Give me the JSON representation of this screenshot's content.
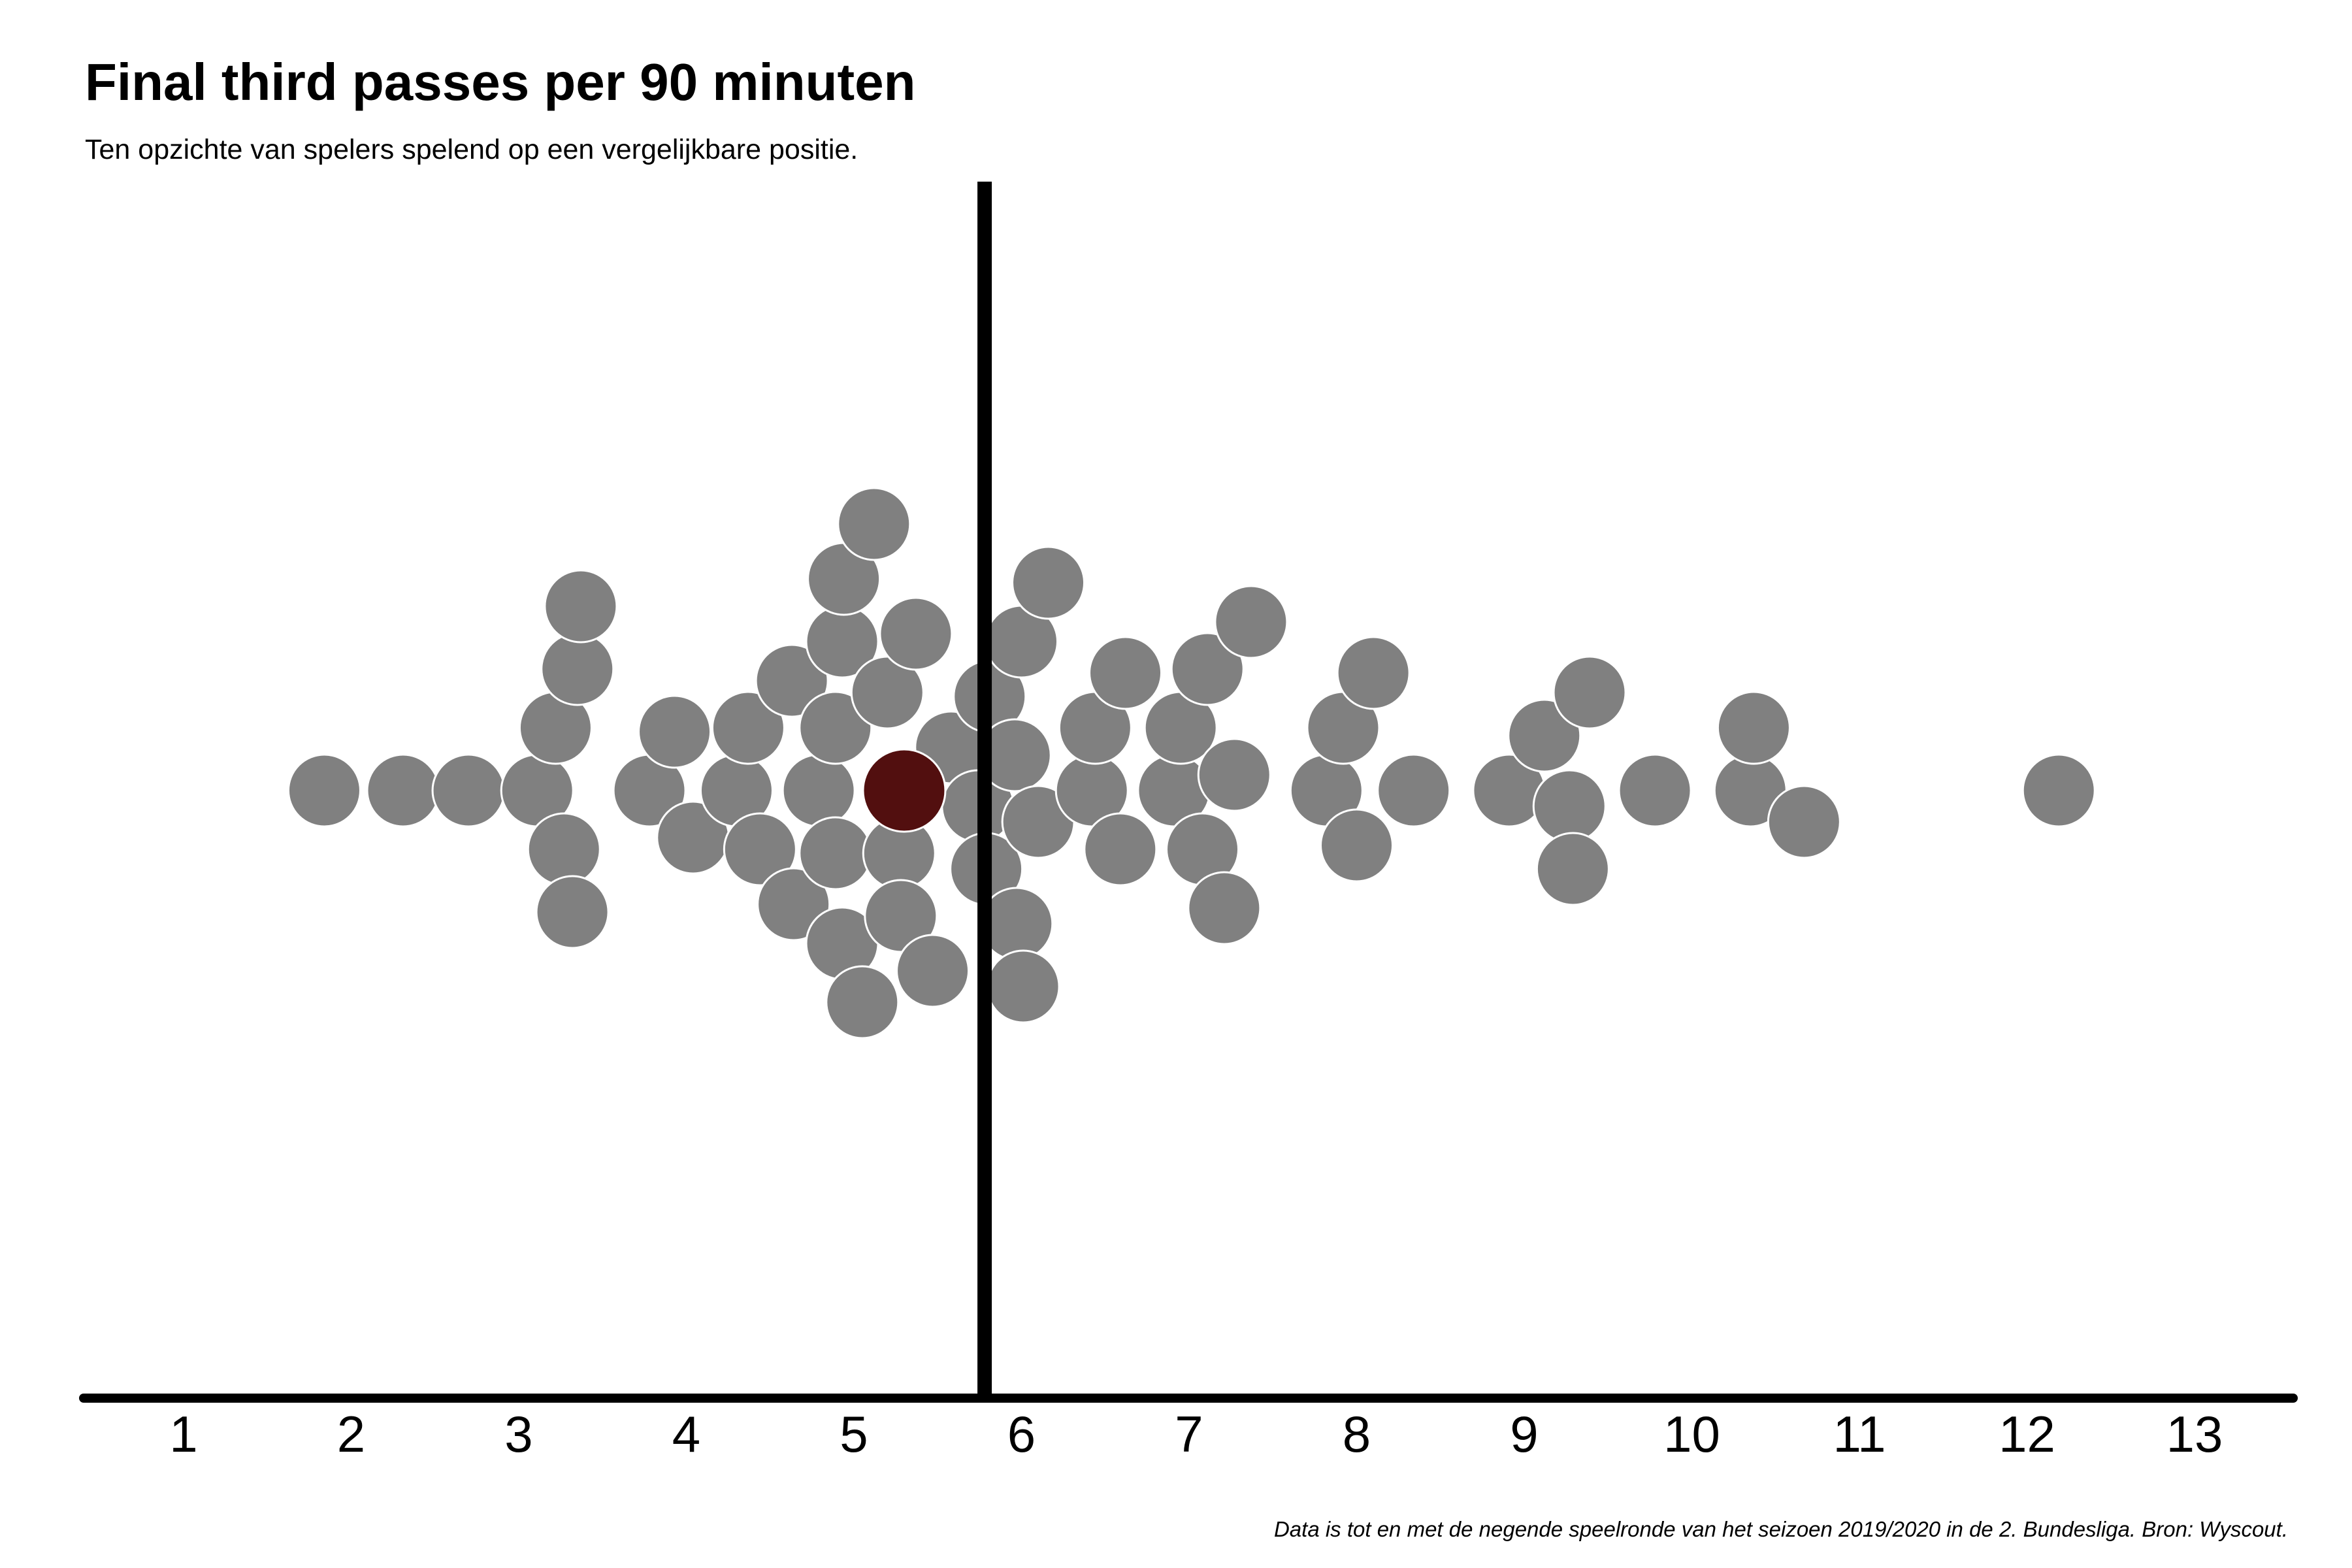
{
  "title": "Final third passes per 90 minuten",
  "subtitle": "Ten opzichte van spelers spelend op een vergelijkbare positie.",
  "caption": "Data is tot en met de negende speelronde van het seizoen 2019/2020 in de 2. Bundesliga. Bron: Wyscout.",
  "colors": {
    "point": "#808080",
    "highlight": "#520f0f",
    "line": "#000000",
    "point_stroke": "#ffffff"
  },
  "chart_data": {
    "type": "scatter",
    "subtype": "beeswarm",
    "title": "Final third passes per 90 minuten",
    "xlabel": "",
    "ylabel": "",
    "xlim": [
      0,
      13.6
    ],
    "xticks": [
      1,
      2,
      3,
      4,
      5,
      6,
      7,
      8,
      9,
      10,
      11,
      12,
      13
    ],
    "tick_labels": [
      "1",
      "2",
      "3",
      "4",
      "5",
      "6",
      "7",
      "8",
      "9",
      "10",
      "11",
      "12",
      "13"
    ],
    "reference_line": 5.78,
    "grid": false,
    "highlight": {
      "x": 5.3
    },
    "x": [
      1.84,
      2.31,
      2.7,
      3.11,
      3.22,
      3.27,
      3.32,
      3.35,
      3.37,
      3.78,
      3.93,
      4.04,
      4.3,
      4.37,
      4.44,
      4.63,
      4.64,
      4.79,
      4.89,
      4.89,
      4.93,
      4.93,
      4.94,
      5.05,
      5.12,
      5.2,
      5.27,
      5.28,
      5.3,
      5.37,
      5.47,
      5.58,
      5.74,
      5.79,
      5.81,
      5.96,
      5.97,
      6.0,
      6.01,
      6.1,
      6.16,
      6.42,
      6.44,
      6.59,
      6.62,
      6.91,
      6.95,
      7.08,
      7.11,
      7.21,
      7.27,
      7.37,
      7.82,
      7.92,
      8.0,
      8.1,
      8.34,
      8.91,
      9.12,
      9.27,
      9.29,
      9.39,
      9.78,
      10.35,
      10.37,
      10.67,
      12.19
    ]
  }
}
